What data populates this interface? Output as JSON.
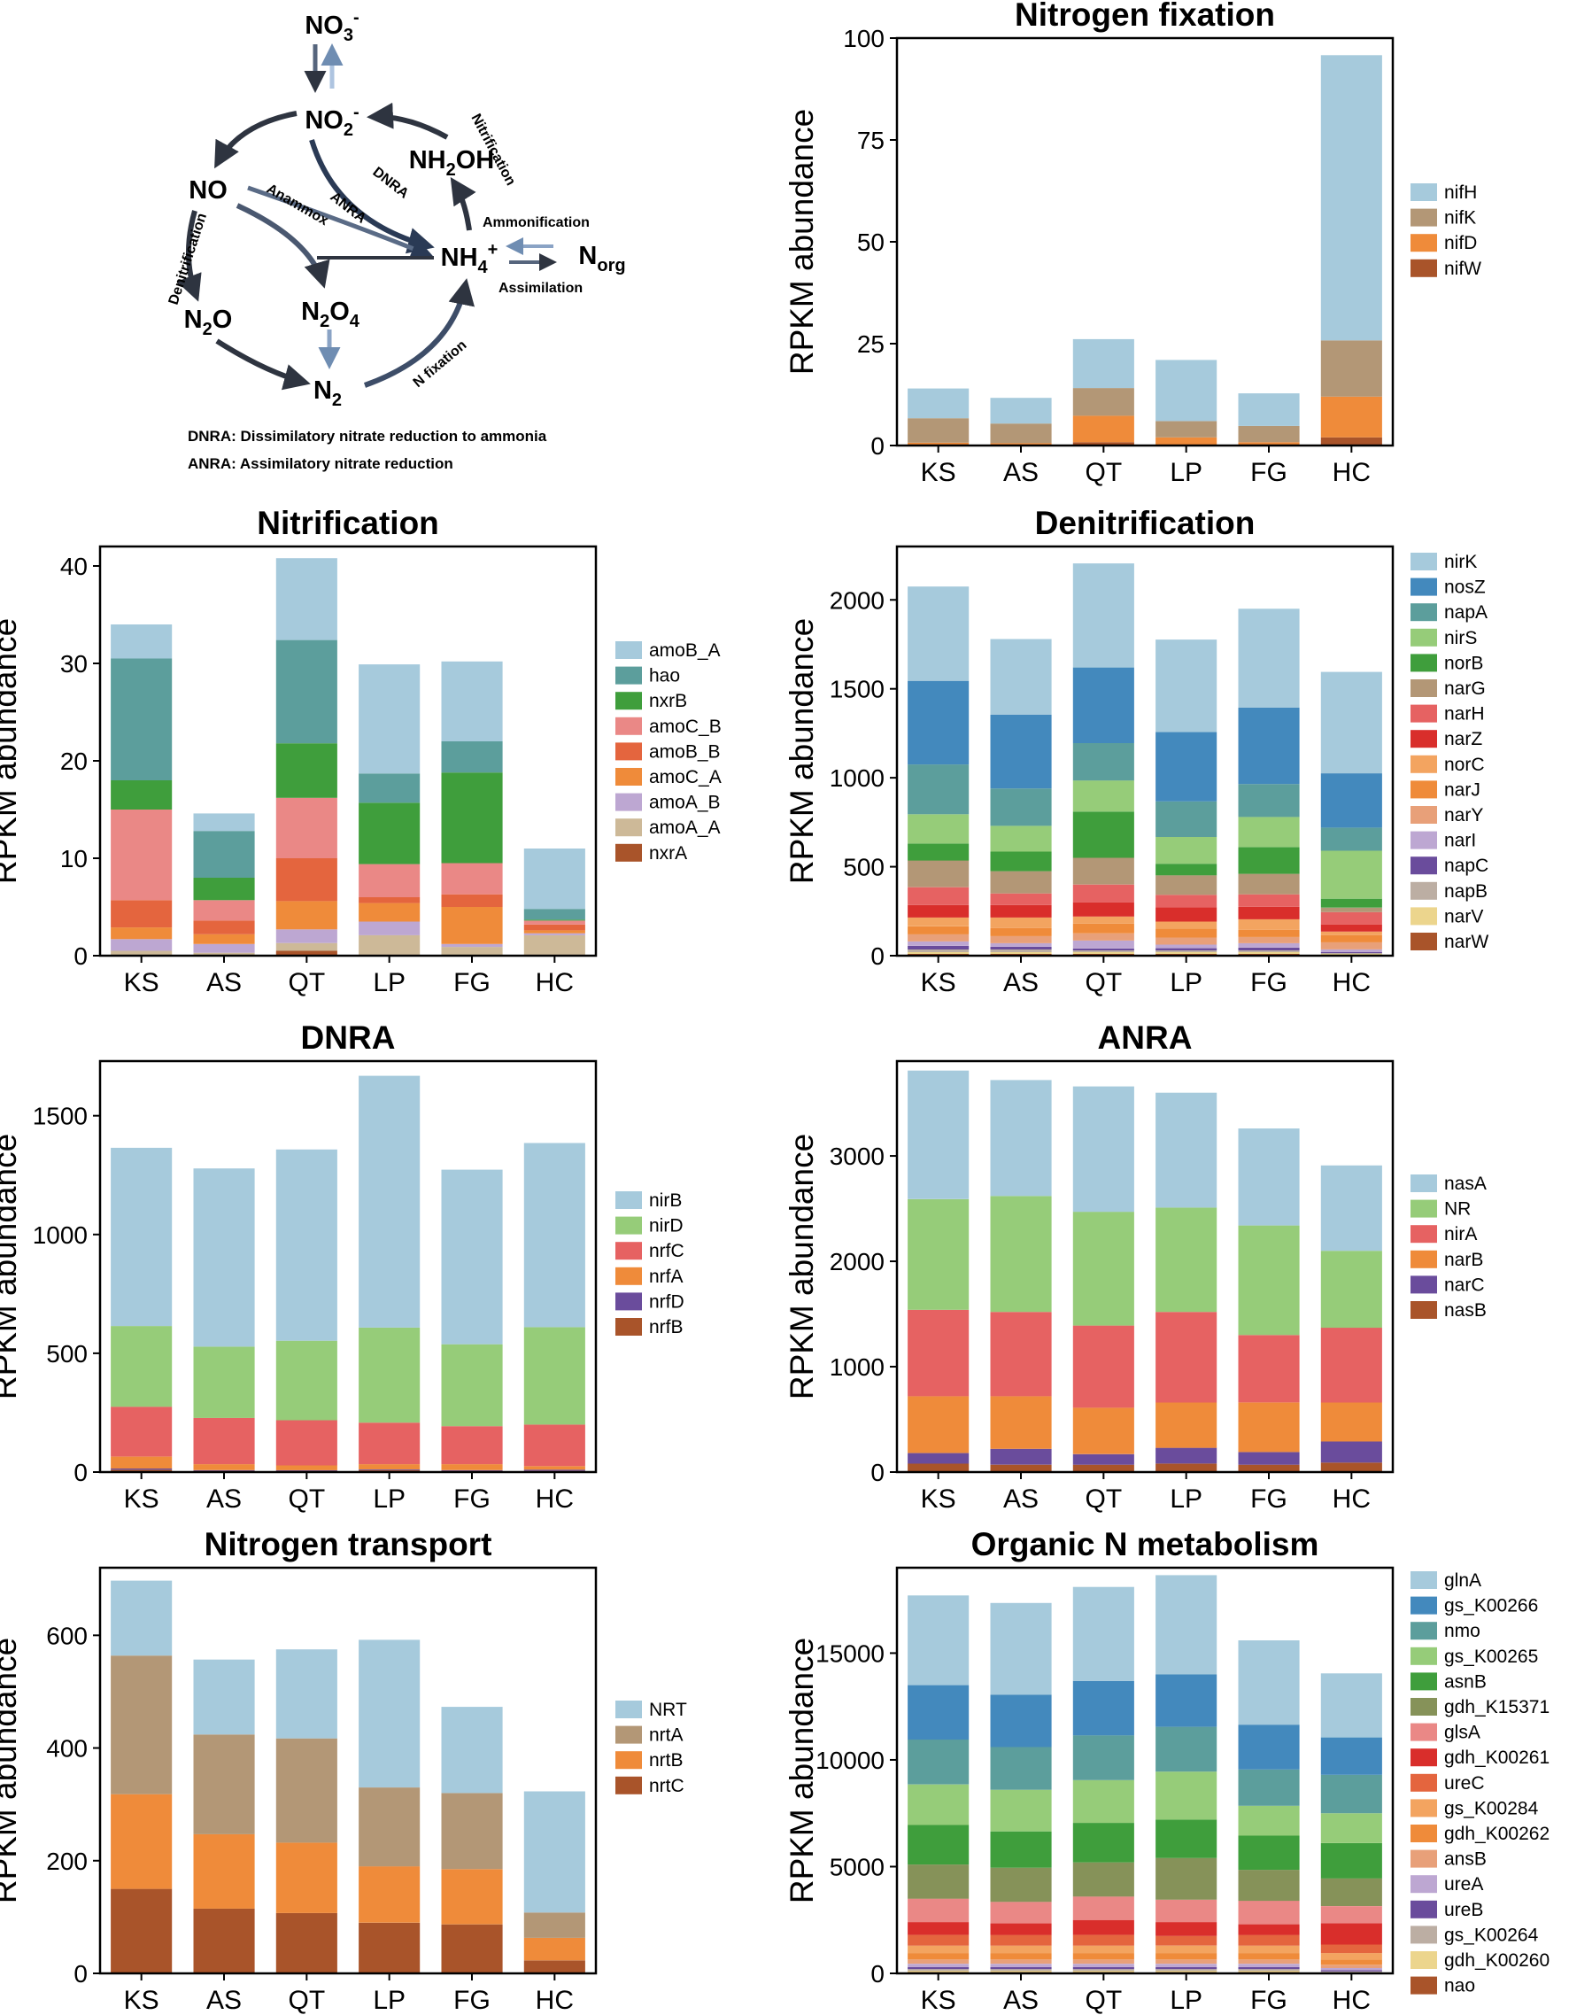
{
  "colors": {
    "blue_light": "#a6cadc",
    "blue": "#4389bd",
    "teal": "#5c9e9c",
    "green_light": "#96cc79",
    "green": "#3f9e3c",
    "olive": "#869259",
    "tan": "#b39776",
    "pink": "#ea8886",
    "red_mid": "#e66262",
    "red": "#d92e2b",
    "orange_red": "#e4653e",
    "orange": "#ef8b3a",
    "orange_light": "#f3a460",
    "peach": "#e8a079",
    "lavender": "#bda7d2",
    "purple": "#6a4c9c",
    "taupe": "#bcaea3",
    "khaki": "#cdb998",
    "yellow": "#ecd58d",
    "brown": "#a9542a"
  },
  "diagram": {
    "nodes": {
      "no3": "NO3-",
      "no2": "NO2-",
      "no": "NO",
      "n2o": "N2O",
      "n2o4": "N2O4",
      "n2": "N2",
      "nh2oh": "NH2OH",
      "nh4": "NH4+",
      "norg": "Norg"
    },
    "processes": {
      "nitrification": "Nitrification",
      "dnra": "DNRA",
      "anra": "ANRA",
      "anammox": "Anammox",
      "denitrification": "Denitrification",
      "ammonification": "Ammonification",
      "assimilation": "Assimilation",
      "nfix": "N fixation"
    },
    "notes": [
      "DNRA: Dissimilatory nitrate reduction to ammonia",
      "ANRA: Assimilatory nitrate reduction"
    ]
  },
  "chart_data": [
    {
      "type": "bar",
      "stacked": true,
      "title": "Nitrogen fixation",
      "xlabel": "",
      "ylabel": "RPKM abundance",
      "categories": [
        "KS",
        "AS",
        "QT",
        "LP",
        "FG",
        "HC"
      ],
      "ylim": [
        0,
        100
      ],
      "yticks": [
        0,
        25,
        50,
        75,
        100
      ],
      "legend_position": "right",
      "series": [
        {
          "name": "nifH",
          "color": "#a6cadc",
          "values": [
            7.3,
            6.3,
            12.0,
            15.0,
            8.0,
            70.0
          ]
        },
        {
          "name": "nifK",
          "color": "#b39776",
          "values": [
            6.0,
            4.8,
            6.8,
            4.0,
            4.0,
            13.8
          ]
        },
        {
          "name": "nifD",
          "color": "#ef8b3a",
          "values": [
            0.5,
            0.4,
            6.5,
            1.8,
            0.6,
            10.0
          ]
        },
        {
          "name": "nifW",
          "color": "#a9542a",
          "values": [
            0.2,
            0.2,
            0.8,
            0.2,
            0.2,
            2.0
          ]
        }
      ]
    },
    {
      "type": "bar",
      "stacked": true,
      "title": "Nitrification",
      "xlabel": "",
      "ylabel": "RPKM abundance",
      "categories": [
        "KS",
        "AS",
        "QT",
        "LP",
        "FG",
        "HC"
      ],
      "ylim": [
        0,
        42
      ],
      "yticks": [
        0,
        10,
        20,
        30,
        40
      ],
      "legend_position": "right",
      "series": [
        {
          "name": "amoB_A",
          "color": "#a6cadc",
          "values": [
            3.5,
            1.8,
            8.4,
            11.2,
            8.2,
            6.2
          ]
        },
        {
          "name": "hao",
          "color": "#5c9e9c",
          "values": [
            12.5,
            4.8,
            10.6,
            3.0,
            3.2,
            1.1
          ]
        },
        {
          "name": "nxrB",
          "color": "#3f9e3c",
          "values": [
            3.0,
            2.3,
            5.6,
            6.3,
            9.3,
            0.1
          ]
        },
        {
          "name": "amoC_B",
          "color": "#ea8886",
          "values": [
            9.3,
            2.1,
            6.2,
            3.4,
            3.2,
            0.4
          ]
        },
        {
          "name": "amoB_B",
          "color": "#e4653e",
          "values": [
            2.8,
            1.4,
            4.4,
            0.6,
            1.3,
            0.6
          ]
        },
        {
          "name": "amoC_A",
          "color": "#ef8b3a",
          "values": [
            1.2,
            1.0,
            2.9,
            1.9,
            3.8,
            0.3
          ]
        },
        {
          "name": "amoA_B",
          "color": "#bda7d2",
          "values": [
            1.2,
            0.9,
            1.4,
            1.4,
            0.3,
            0.2
          ]
        },
        {
          "name": "amoA_A",
          "color": "#cdb998",
          "values": [
            0.5,
            0.3,
            0.8,
            2.0,
            0.9,
            2.0
          ]
        },
        {
          "name": "nxrA",
          "color": "#a9542a",
          "values": [
            0.0,
            0.0,
            0.5,
            0.1,
            0.0,
            0.1
          ]
        }
      ]
    },
    {
      "type": "bar",
      "stacked": true,
      "title": "Denitrification",
      "xlabel": "",
      "ylabel": "RPKM abundance",
      "categories": [
        "KS",
        "AS",
        "QT",
        "LP",
        "FG",
        "HC"
      ],
      "ylim": [
        0,
        2300
      ],
      "yticks": [
        0,
        500,
        1000,
        1500,
        2000
      ],
      "legend_position": "right",
      "series": [
        {
          "name": "nirK",
          "color": "#a6cadc",
          "values": [
            530,
            425,
            585,
            520,
            555,
            570
          ]
        },
        {
          "name": "nosZ",
          "color": "#4389bd",
          "values": [
            470,
            415,
            425,
            390,
            430,
            305
          ]
        },
        {
          "name": "napA",
          "color": "#5c9e9c",
          "values": [
            280,
            210,
            210,
            200,
            185,
            130
          ]
        },
        {
          "name": "nirS",
          "color": "#96cc79",
          "values": [
            165,
            145,
            175,
            150,
            170,
            270
          ]
        },
        {
          "name": "norB",
          "color": "#3f9e3c",
          "values": [
            95,
            110,
            260,
            65,
            150,
            50
          ]
        },
        {
          "name": "narG",
          "color": "#b39776",
          "values": [
            150,
            125,
            150,
            110,
            115,
            25
          ]
        },
        {
          "name": "narH",
          "color": "#e66262",
          "values": [
            100,
            65,
            100,
            70,
            70,
            70
          ]
        },
        {
          "name": "narZ",
          "color": "#d92e2b",
          "values": [
            70,
            70,
            80,
            80,
            70,
            40
          ]
        },
        {
          "name": "norC",
          "color": "#f3a460",
          "values": [
            50,
            60,
            40,
            40,
            60,
            20
          ]
        },
        {
          "name": "narJ",
          "color": "#ef8b3a",
          "values": [
            45,
            45,
            55,
            50,
            40,
            40
          ]
        },
        {
          "name": "narY",
          "color": "#e8a079",
          "values": [
            40,
            40,
            40,
            40,
            35,
            40
          ]
        },
        {
          "name": "narI",
          "color": "#bda7d2",
          "values": [
            25,
            20,
            45,
            20,
            25,
            15
          ]
        },
        {
          "name": "napC",
          "color": "#6a4c9c",
          "values": [
            20,
            15,
            10,
            12,
            15,
            5
          ]
        },
        {
          "name": "napB",
          "color": "#bcaea3",
          "values": [
            15,
            15,
            10,
            10,
            10,
            5
          ]
        },
        {
          "name": "narV",
          "color": "#ecd58d",
          "values": [
            10,
            10,
            10,
            10,
            10,
            5
          ]
        },
        {
          "name": "narW",
          "color": "#a9542a",
          "values": [
            10,
            10,
            10,
            10,
            10,
            5
          ]
        }
      ]
    },
    {
      "type": "bar",
      "stacked": true,
      "title": "DNRA",
      "xlabel": "",
      "ylabel": "RPKM abundance",
      "categories": [
        "KS",
        "AS",
        "QT",
        "LP",
        "FG",
        "HC"
      ],
      "ylim": [
        0,
        1730
      ],
      "yticks": [
        0,
        500,
        1000,
        1500
      ],
      "legend_position": "right",
      "series": [
        {
          "name": "nirB",
          "color": "#a6cadc",
          "values": [
            750,
            750,
            805,
            1060,
            735,
            775
          ]
        },
        {
          "name": "nirD",
          "color": "#96cc79",
          "values": [
            340,
            300,
            335,
            400,
            345,
            410
          ]
        },
        {
          "name": "nrfC",
          "color": "#e66262",
          "values": [
            210,
            195,
            190,
            175,
            160,
            175
          ]
        },
        {
          "name": "nrfA",
          "color": "#ef8b3a",
          "values": [
            50,
            25,
            20,
            22,
            25,
            15
          ]
        },
        {
          "name": "nrfD",
          "color": "#6a4c9c",
          "values": [
            5,
            3,
            3,
            3,
            3,
            5
          ]
        },
        {
          "name": "nrfB",
          "color": "#a9542a",
          "values": [
            10,
            5,
            5,
            8,
            5,
            5
          ]
        }
      ]
    },
    {
      "type": "bar",
      "stacked": true,
      "title": "ANRA",
      "xlabel": "",
      "ylabel": "RPKM abundance",
      "categories": [
        "KS",
        "AS",
        "QT",
        "LP",
        "FG",
        "HC"
      ],
      "ylim": [
        0,
        3900
      ],
      "yticks": [
        0,
        1000,
        2000,
        3000
      ],
      "legend_position": "right",
      "series": [
        {
          "name": "nasA",
          "color": "#a6cadc",
          "values": [
            1220,
            1100,
            1190,
            1090,
            920,
            810
          ]
        },
        {
          "name": "NR",
          "color": "#96cc79",
          "values": [
            1050,
            1100,
            1080,
            990,
            1040,
            730
          ]
        },
        {
          "name": "nirA",
          "color": "#e66262",
          "values": [
            820,
            800,
            780,
            860,
            640,
            710
          ]
        },
        {
          "name": "narB",
          "color": "#ef8b3a",
          "values": [
            540,
            500,
            440,
            430,
            470,
            370
          ]
        },
        {
          "name": "narC",
          "color": "#6a4c9c",
          "values": [
            100,
            150,
            100,
            150,
            120,
            200
          ]
        },
        {
          "name": "nasB",
          "color": "#a9542a",
          "values": [
            80,
            70,
            70,
            80,
            70,
            90
          ]
        }
      ]
    },
    {
      "type": "bar",
      "stacked": true,
      "title": "Nitrogen transport",
      "xlabel": "",
      "ylabel": "RPKM abundance",
      "categories": [
        "KS",
        "AS",
        "QT",
        "LP",
        "FG",
        "HC"
      ],
      "ylim": [
        0,
        720
      ],
      "yticks": [
        0,
        200,
        400,
        600
      ],
      "legend_position": "right",
      "series": [
        {
          "name": "NRT",
          "color": "#a6cadc",
          "values": [
            133,
            133,
            158,
            262,
            153,
            215
          ]
        },
        {
          "name": "nrtA",
          "color": "#b39776",
          "values": [
            246,
            177,
            185,
            140,
            135,
            45
          ]
        },
        {
          "name": "nrtB",
          "color": "#ef8b3a",
          "values": [
            168,
            132,
            125,
            100,
            98,
            40
          ]
        },
        {
          "name": "nrtC",
          "color": "#a9542a",
          "values": [
            150,
            115,
            107,
            90,
            87,
            23
          ]
        }
      ]
    },
    {
      "type": "bar",
      "stacked": true,
      "title": "Organic N metabolism",
      "xlabel": "",
      "ylabel": "RPKM abundance",
      "categories": [
        "KS",
        "AS",
        "QT",
        "LP",
        "FG",
        "HC"
      ],
      "ylim": [
        0,
        19000
      ],
      "yticks": [
        0,
        5000,
        10000,
        15000
      ],
      "legend_position": "right",
      "series": [
        {
          "name": "glnA",
          "color": "#a6cadc",
          "values": [
            4200,
            4300,
            4400,
            4650,
            3950,
            3000
          ]
        },
        {
          "name": "gs_K00266",
          "color": "#4389bd",
          "values": [
            2550,
            2450,
            2550,
            2450,
            2100,
            1750
          ]
        },
        {
          "name": "nmo",
          "color": "#5c9e9c",
          "values": [
            2100,
            2000,
            2100,
            2100,
            1700,
            1800
          ]
        },
        {
          "name": "gs_K00265",
          "color": "#96cc79",
          "values": [
            1900,
            1950,
            2000,
            2250,
            1400,
            1400
          ]
        },
        {
          "name": "asnB",
          "color": "#3f9e3c",
          "values": [
            1850,
            1700,
            1850,
            1800,
            1600,
            1650
          ]
        },
        {
          "name": "gdh_K15371",
          "color": "#869259",
          "values": [
            1600,
            1600,
            1600,
            1950,
            1450,
            1300
          ]
        },
        {
          "name": "glsA",
          "color": "#ea8886",
          "values": [
            1100,
            1000,
            1100,
            1050,
            1100,
            800
          ]
        },
        {
          "name": "gdh_K00261",
          "color": "#d92e2b",
          "values": [
            600,
            550,
            700,
            650,
            500,
            1000
          ]
        },
        {
          "name": "ureC",
          "color": "#e4653e",
          "values": [
            500,
            500,
            500,
            450,
            500,
            400
          ]
        },
        {
          "name": "gs_K00284",
          "color": "#f3a460",
          "values": [
            350,
            350,
            350,
            350,
            350,
            300
          ]
        },
        {
          "name": "gdh_K00262",
          "color": "#ef8b3a",
          "values": [
            300,
            300,
            300,
            300,
            300,
            250
          ]
        },
        {
          "name": "ansB",
          "color": "#e8a079",
          "values": [
            200,
            200,
            200,
            200,
            200,
            150
          ]
        },
        {
          "name": "ureA",
          "color": "#bda7d2",
          "values": [
            150,
            150,
            150,
            150,
            150,
            100
          ]
        },
        {
          "name": "ureB",
          "color": "#6a4c9c",
          "values": [
            100,
            100,
            100,
            100,
            100,
            60
          ]
        },
        {
          "name": "gs_K00264",
          "color": "#bcaea3",
          "values": [
            80,
            80,
            80,
            80,
            80,
            40
          ]
        },
        {
          "name": "gdh_K00260",
          "color": "#ecd58d",
          "values": [
            60,
            60,
            60,
            60,
            60,
            30
          ]
        },
        {
          "name": "nao",
          "color": "#a9542a",
          "values": [
            60,
            60,
            60,
            60,
            60,
            20
          ]
        }
      ]
    }
  ]
}
